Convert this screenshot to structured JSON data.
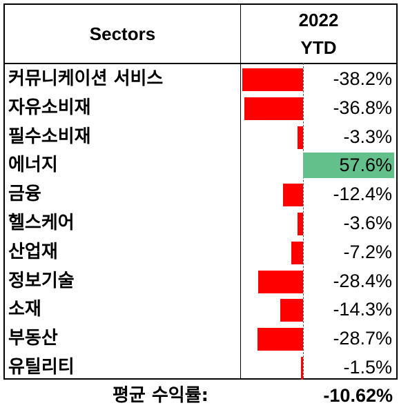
{
  "header": {
    "sectors_label": "Sectors",
    "year_label": "2022",
    "period_label": "YTD"
  },
  "chart_data": {
    "type": "bar",
    "orientation": "horizontal",
    "categories": [
      "커뮤니케이션 서비스",
      "자유소비재",
      "필수소비재",
      "에너지",
      "금융",
      "헬스케어",
      "산업재",
      "정보기술",
      "소재",
      "부동산",
      "유틸리티"
    ],
    "values": [
      -38.2,
      -36.8,
      -3.3,
      57.6,
      -12.4,
      -3.6,
      -7.2,
      -28.4,
      -14.3,
      -28.7,
      -1.5
    ],
    "value_labels": [
      "-38.2%",
      "-36.8%",
      "-3.3%",
      "57.6%",
      "-12.4%",
      "-3.6%",
      "-7.2%",
      "-28.4%",
      "-14.3%",
      "-28.7%",
      "-1.5%"
    ],
    "colors": {
      "negative": "#ff0000",
      "positive": "#64c08a"
    },
    "title": "",
    "xlabel": "",
    "ylabel": ""
  },
  "footer": {
    "avg_label": "평균 수익률:",
    "avg_value": "-10.62%"
  }
}
